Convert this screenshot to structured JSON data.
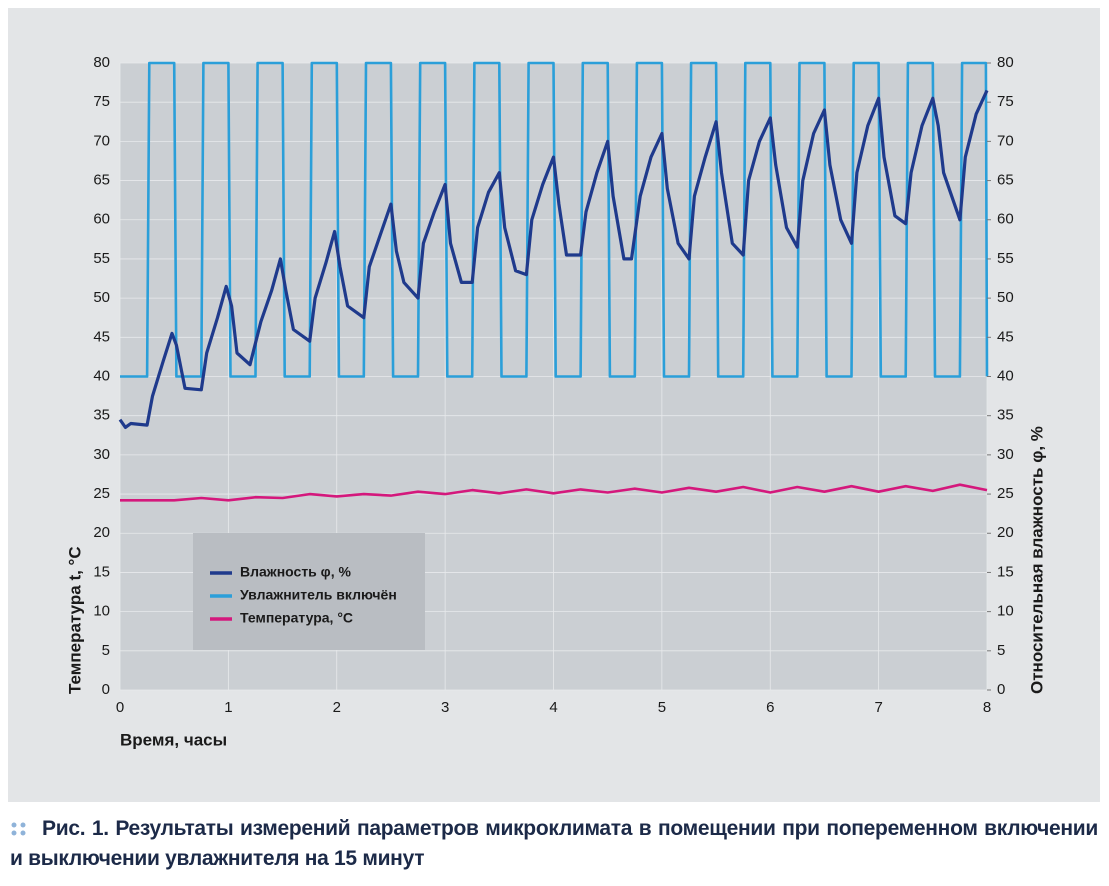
{
  "chart_data": {
    "type": "line",
    "caption_label": "Рис. 1.",
    "caption": "Результаты измерений параметров микроклимата в помещении при попеременном включении и выключении увлажнителя на 15 минут",
    "xlabel": "Время, часы",
    "ylabel": "Температура t, °C",
    "y2label": "Относительная влажность φ, %",
    "xlim": [
      0,
      8
    ],
    "xticks": [
      0,
      1,
      2,
      3,
      4,
      5,
      6,
      7,
      8
    ],
    "ylim": [
      0,
      80
    ],
    "yticks": [
      0,
      5,
      10,
      15,
      20,
      25,
      30,
      35,
      40,
      45,
      50,
      55,
      60,
      65,
      70,
      75,
      80
    ],
    "y2lim": [
      0,
      80
    ],
    "y2ticks": [
      0,
      5,
      10,
      15,
      20,
      25,
      30,
      35,
      40,
      45,
      50,
      55,
      60,
      65,
      70,
      75,
      80
    ],
    "grid": true,
    "series": [
      {
        "name": "Влажность φ, %",
        "color": "#1f3a8c",
        "axis": "y2",
        "x": [
          0,
          0.05,
          0.1,
          0.25,
          0.3,
          0.4,
          0.48,
          0.52,
          0.6,
          0.75,
          0.8,
          0.9,
          0.98,
          1.03,
          1.08,
          1.2,
          1.3,
          1.4,
          1.48,
          1.53,
          1.6,
          1.75,
          1.8,
          1.9,
          1.98,
          2.03,
          2.1,
          2.25,
          2.3,
          2.4,
          2.5,
          2.55,
          2.62,
          2.75,
          2.8,
          2.9,
          3.0,
          3.05,
          3.15,
          3.25,
          3.3,
          3.4,
          3.5,
          3.55,
          3.65,
          3.75,
          3.8,
          3.9,
          4.0,
          4.05,
          4.12,
          4.25,
          4.3,
          4.4,
          4.5,
          4.55,
          4.65,
          4.72,
          4.8,
          4.9,
          5.0,
          5.05,
          5.15,
          5.25,
          5.3,
          5.4,
          5.5,
          5.55,
          5.65,
          5.75,
          5.8,
          5.9,
          6.0,
          6.05,
          6.15,
          6.25,
          6.3,
          6.4,
          6.5,
          6.55,
          6.65,
          6.75,
          6.8,
          6.9,
          7.0,
          7.05,
          7.15,
          7.25,
          7.3,
          7.4,
          7.5,
          7.55,
          7.6,
          7.75,
          7.8,
          7.9,
          8.0
        ],
        "values": [
          34.5,
          33.5,
          34,
          33.8,
          37.5,
          42,
          45.5,
          44,
          38.5,
          38.3,
          43,
          47.5,
          51.5,
          49,
          43,
          41.5,
          47,
          51,
          55,
          51,
          46,
          44.5,
          50,
          54.5,
          58.5,
          54,
          49,
          47.5,
          54,
          58,
          62,
          56,
          52,
          50,
          57,
          61,
          64.5,
          57,
          52,
          52,
          59,
          63.5,
          66,
          59,
          53.5,
          53,
          60,
          64.5,
          68,
          62,
          55.5,
          55.5,
          61,
          66,
          70,
          63,
          55,
          55,
          63,
          68,
          71,
          64,
          57,
          55,
          63,
          68,
          72.5,
          66,
          57,
          55.5,
          65,
          70,
          73,
          67,
          59,
          56.5,
          65,
          71,
          74,
          67,
          60,
          57,
          66,
          72,
          75.5,
          68,
          60.5,
          59.5,
          66,
          72,
          75.5,
          72,
          66,
          60,
          68,
          73.5,
          76.5
        ]
      },
      {
        "name": "Увлажнитель включён",
        "color": "#2b9fd9",
        "axis": "y2",
        "x": [
          0,
          0.25,
          0.27,
          0.5,
          0.52,
          0.75,
          0.77,
          1.0,
          1.02,
          1.25,
          1.27,
          1.5,
          1.52,
          1.75,
          1.77,
          2.0,
          2.02,
          2.25,
          2.27,
          2.5,
          2.52,
          2.75,
          2.77,
          3.0,
          3.02,
          3.25,
          3.27,
          3.5,
          3.52,
          3.75,
          3.77,
          4.0,
          4.02,
          4.25,
          4.27,
          4.5,
          4.52,
          4.75,
          4.77,
          5.0,
          5.02,
          5.25,
          5.27,
          5.5,
          5.52,
          5.75,
          5.77,
          6.0,
          6.02,
          6.25,
          6.27,
          6.5,
          6.52,
          6.75,
          6.77,
          7.0,
          7.02,
          7.25,
          7.27,
          7.5,
          7.52,
          7.75,
          7.77,
          7.99,
          8.0
        ],
        "values": [
          40,
          40,
          80,
          80,
          40,
          40,
          80,
          80,
          40,
          40,
          80,
          80,
          40,
          40,
          80,
          80,
          40,
          40,
          80,
          80,
          40,
          40,
          80,
          80,
          40,
          40,
          80,
          80,
          40,
          40,
          80,
          80,
          40,
          40,
          80,
          80,
          40,
          40,
          80,
          80,
          40,
          40,
          80,
          80,
          40,
          40,
          80,
          80,
          40,
          40,
          80,
          80,
          40,
          40,
          80,
          80,
          40,
          40,
          80,
          80,
          40,
          40,
          80,
          80,
          40
        ]
      },
      {
        "name": "Температура, °C",
        "color": "#d4187c",
        "axis": "y",
        "x": [
          0,
          0.25,
          0.5,
          0.75,
          1,
          1.25,
          1.5,
          1.75,
          2,
          2.25,
          2.5,
          2.75,
          3,
          3.25,
          3.5,
          3.75,
          4,
          4.25,
          4.5,
          4.75,
          5,
          5.25,
          5.5,
          5.75,
          6,
          6.25,
          6.5,
          6.75,
          7,
          7.25,
          7.5,
          7.75,
          8
        ],
        "values": [
          24.2,
          24.2,
          24.2,
          24.5,
          24.2,
          24.6,
          24.5,
          25,
          24.7,
          25,
          24.8,
          25.3,
          25,
          25.5,
          25.1,
          25.6,
          25.1,
          25.6,
          25.2,
          25.7,
          25.2,
          25.8,
          25.3,
          25.9,
          25.2,
          25.9,
          25.3,
          26,
          25.3,
          26,
          25.4,
          26.2,
          25.5
        ]
      }
    ]
  }
}
